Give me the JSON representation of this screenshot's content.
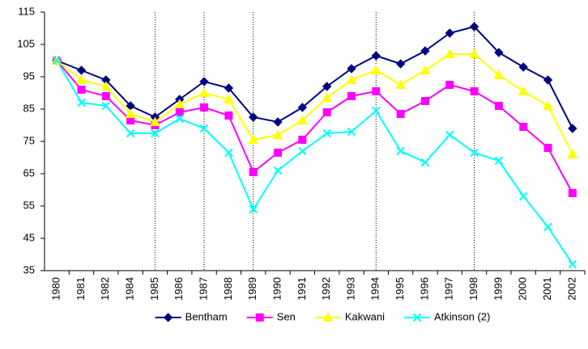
{
  "chart_data": {
    "type": "line",
    "categories": [
      "1980",
      "1981",
      "1982",
      "1984",
      "1985",
      "1986",
      "1987",
      "1988",
      "1989",
      "1990",
      "1991",
      "1992",
      "1993",
      "1994",
      "1995",
      "1996",
      "1997",
      "1998",
      "1999",
      "2000",
      "2001",
      "2002"
    ],
    "series": [
      {
        "name": "Bentham",
        "color": "#000080",
        "marker": "diamond",
        "values": [
          100,
          97,
          94,
          86,
          82.5,
          88,
          93.5,
          91.5,
          82.5,
          81,
          85.5,
          92,
          97.5,
          101.5,
          99,
          103,
          108.5,
          110.5,
          102.5,
          98,
          94,
          79
        ]
      },
      {
        "name": "Sen",
        "color": "#ff00ff",
        "marker": "square",
        "values": [
          100,
          91,
          89,
          81.5,
          80,
          84,
          85.5,
          83,
          65.5,
          71.5,
          75.5,
          84,
          89,
          90.5,
          83.5,
          87.5,
          92.5,
          90.5,
          86,
          79.5,
          73,
          59
        ]
      },
      {
        "name": "Kakwani",
        "color": "#ffff00",
        "marker": "triangle",
        "values": [
          100,
          94,
          92,
          83.5,
          81,
          86.5,
          90,
          88,
          75.5,
          77,
          81.5,
          88.5,
          94,
          97,
          92.5,
          97,
          102,
          102,
          95.5,
          90.5,
          86,
          71
        ]
      },
      {
        "name": "Atkinson (2)",
        "color": "#00ffff",
        "marker": "x",
        "values": [
          100,
          87,
          86,
          77.5,
          77.5,
          82,
          79,
          71.5,
          54,
          66,
          72,
          77.5,
          78,
          84.5,
          72,
          68.5,
          77,
          71.5,
          69,
          58,
          48.5,
          37
        ]
      }
    ],
    "ylim": [
      35,
      115
    ],
    "yticks": [
      35,
      45,
      55,
      65,
      75,
      85,
      95,
      105,
      115
    ],
    "vertical_lines": [
      "1985",
      "1987",
      "1989",
      "1994",
      "1998"
    ],
    "legend": "bottom"
  }
}
